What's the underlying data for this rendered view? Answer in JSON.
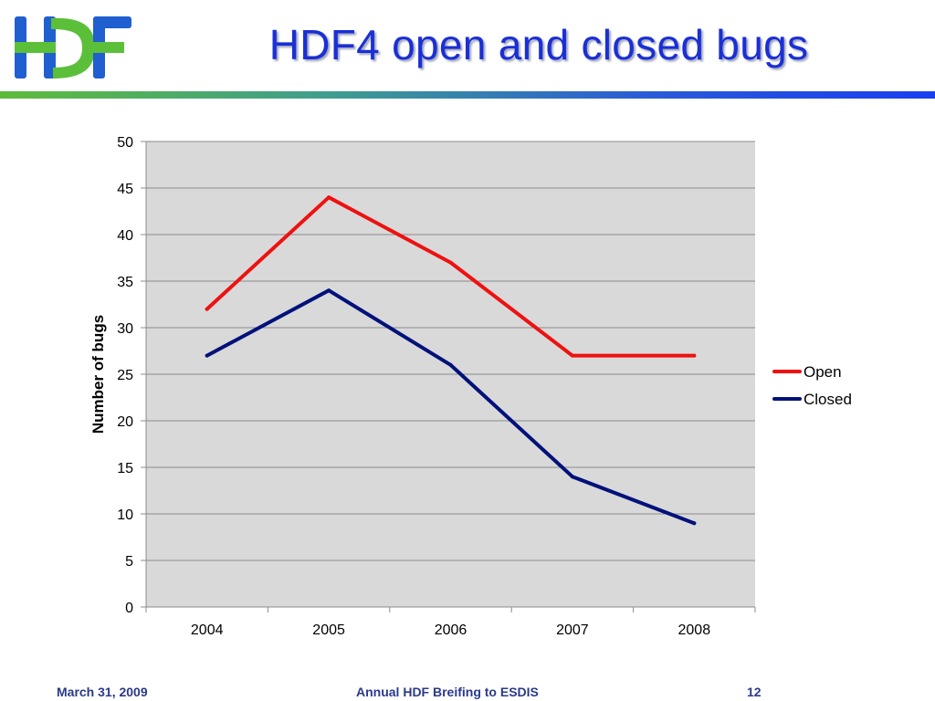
{
  "slide": {
    "title": "HDF4 open and closed bugs",
    "logo_text": "HDF"
  },
  "footer": {
    "date": "March 31, 2009",
    "center_text": "Annual HDF Breifing to ESDIS",
    "page_number": "12"
  },
  "colors": {
    "title": "#1a2fd6",
    "logo_blue": "#1f5fd0",
    "logo_green": "#5cbf3a",
    "plot_background": "#d9d9d9",
    "open_line": "#ee1111",
    "closed_line": "#00117a"
  },
  "chart_data": {
    "type": "line",
    "title": "",
    "xlabel": "",
    "ylabel": "Number of bugs",
    "categories": [
      "2004",
      "2005",
      "2006",
      "2007",
      "2008"
    ],
    "ylim": [
      0,
      50
    ],
    "yticks": [
      0,
      5,
      10,
      15,
      20,
      25,
      30,
      35,
      40,
      45,
      50
    ],
    "grid": true,
    "legend_position": "right",
    "series": [
      {
        "name": "Open",
        "values": [
          32,
          44,
          37,
          27,
          27
        ],
        "color": "#ee1111"
      },
      {
        "name": "Closed",
        "values": [
          27,
          34,
          26,
          14,
          9
        ],
        "color": "#00117a"
      }
    ]
  }
}
